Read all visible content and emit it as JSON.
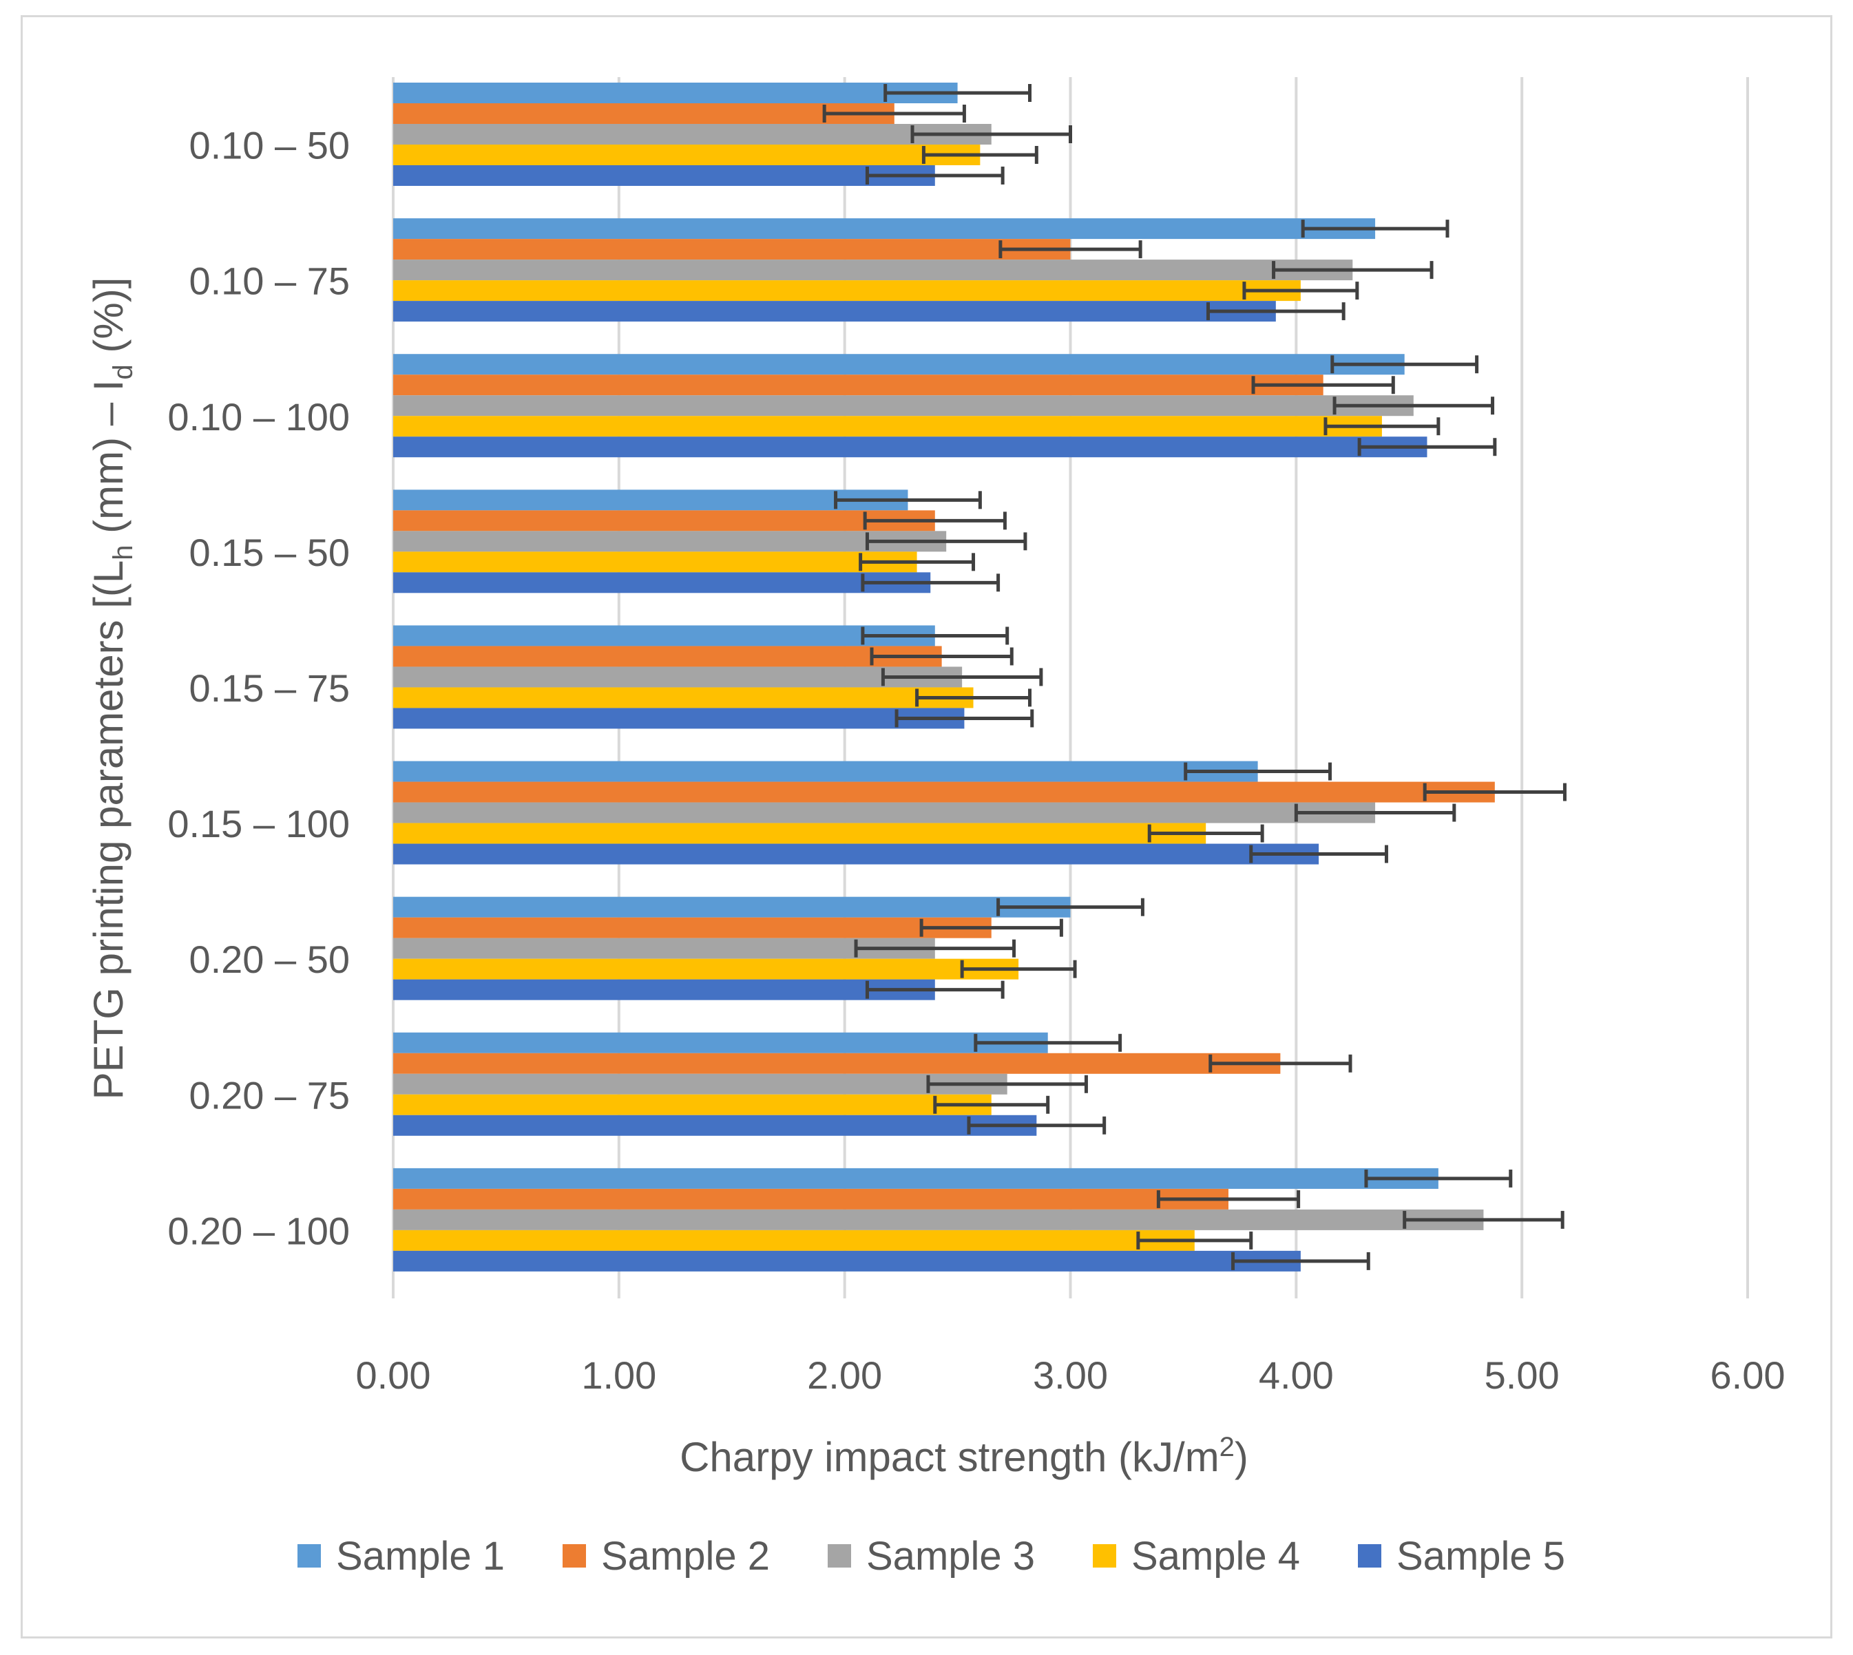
{
  "chart_data": {
    "type": "bar",
    "orientation": "horizontal",
    "title": "",
    "xlabel": "Charpy impact strength (kJ/m2)",
    "xlabel_parts": {
      "main": "Charpy impact strength (kJ/m",
      "sup": "2",
      "end": ")"
    },
    "ylabel": "PETG printing parameters [(Lh (mm) – Id (%)]",
    "ylabel_parts": {
      "a": "PETG printing parameters [(L",
      "sub1": "h",
      "b": " (mm) – I",
      "sub2": "d",
      "c": " (%)]"
    },
    "xlim": [
      0,
      6
    ],
    "xticks": [
      "0.00",
      "1.00",
      "2.00",
      "3.00",
      "4.00",
      "5.00",
      "6.00"
    ],
    "categories": [
      "0.10 – 50",
      "0.10 – 75",
      "0.10 – 100",
      "0.15 – 50",
      "0.15 – 75",
      "0.15 – 100",
      "0.20 – 50",
      "0.20 – 75",
      "0.20 – 100"
    ],
    "series": [
      {
        "name": "Sample 1",
        "color": "#5b9bd5",
        "values": [
          2.5,
          4.35,
          4.48,
          2.28,
          2.4,
          3.83,
          3.0,
          2.9,
          4.63
        ],
        "errors": [
          0.32,
          0.32,
          0.32,
          0.32,
          0.32,
          0.32,
          0.32,
          0.32,
          0.32
        ]
      },
      {
        "name": "Sample 2",
        "color": "#ed7d31",
        "values": [
          2.22,
          3.0,
          4.12,
          2.4,
          2.43,
          4.88,
          2.65,
          3.93,
          3.7
        ],
        "errors": [
          0.31,
          0.31,
          0.31,
          0.31,
          0.31,
          0.31,
          0.31,
          0.31,
          0.31
        ]
      },
      {
        "name": "Sample 3",
        "color": "#a5a5a5",
        "values": [
          2.65,
          4.25,
          4.52,
          2.45,
          2.52,
          4.35,
          2.4,
          2.72,
          4.83
        ],
        "errors": [
          0.35,
          0.35,
          0.35,
          0.35,
          0.35,
          0.35,
          0.35,
          0.35,
          0.35
        ]
      },
      {
        "name": "Sample 4",
        "color": "#ffc000",
        "values": [
          2.6,
          4.02,
          4.38,
          2.32,
          2.57,
          3.6,
          2.77,
          2.65,
          3.55
        ],
        "errors": [
          0.25,
          0.25,
          0.25,
          0.25,
          0.25,
          0.25,
          0.25,
          0.25,
          0.25
        ]
      },
      {
        "name": "Sample 5",
        "color": "#4472c4",
        "values": [
          2.4,
          3.91,
          4.58,
          2.38,
          2.53,
          4.1,
          2.4,
          2.85,
          4.02
        ],
        "errors": [
          0.3,
          0.3,
          0.3,
          0.3,
          0.3,
          0.3,
          0.3,
          0.3,
          0.3
        ]
      }
    ],
    "grid": true,
    "legend_position": "bottom",
    "colors": {
      "gridline": "#d9d9d9",
      "axis_text": "#595959",
      "error_bar": "#404040",
      "frame": "#d9d9d9"
    }
  }
}
